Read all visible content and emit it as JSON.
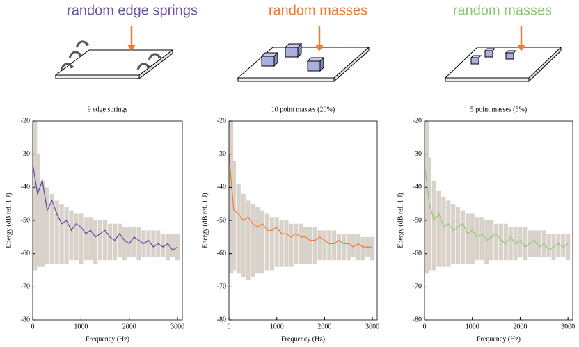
{
  "chart_data": [
    {
      "type": "line",
      "heading": "random edge springs",
      "heading_color": "#6a52a3",
      "title": "9 edge springs",
      "x_label": "Frequency (Hz)",
      "y_label": "Energy (dB ref. 1 J)",
      "x": [
        0,
        100,
        200,
        300,
        400,
        500,
        600,
        700,
        800,
        900,
        1000,
        1100,
        1200,
        1300,
        1400,
        1500,
        1600,
        1700,
        1800,
        1900,
        2000,
        2100,
        2200,
        2300,
        2400,
        2500,
        2600,
        2700,
        2800,
        2900,
        3000
      ],
      "series": [
        {
          "color": "#5b45a0",
          "values": [
            -33,
            -42,
            -38,
            -47,
            -44,
            -48,
            -51,
            -50,
            -53,
            -51,
            -52,
            -54,
            -53,
            -55,
            -54,
            -53,
            -55,
            -56,
            -54,
            -56,
            -57,
            -55,
            -56,
            -57,
            -56,
            -58,
            -57,
            -58,
            -57,
            -59,
            -58
          ]
        }
      ],
      "band": {
        "color": "#d9d2cb",
        "upper": [
          -20,
          -30,
          -38,
          -40,
          -42,
          -44,
          -45,
          -46,
          -47,
          -48,
          -48,
          -49,
          -49,
          -50,
          -50,
          -50,
          -51,
          -51,
          -51,
          -52,
          -52,
          -52,
          -52,
          -53,
          -53,
          -53,
          -53,
          -54,
          -54,
          -54,
          -54
        ],
        "lower": [
          -65,
          -64,
          -64,
          -63,
          -63,
          -63,
          -63,
          -63,
          -62,
          -62,
          -63,
          -62,
          -62,
          -63,
          -62,
          -62,
          -62,
          -62,
          -61,
          -62,
          -61,
          -61,
          -62,
          -61,
          -61,
          -61,
          -61,
          -61,
          -62,
          -61,
          -62
        ]
      },
      "xlim": [
        0,
        3100
      ],
      "ylim": [
        -80,
        -20
      ],
      "xticks": [
        0,
        1000,
        2000,
        3000
      ],
      "yticks": [
        -80,
        -70,
        -60,
        -50,
        -40,
        -30,
        -20
      ]
    },
    {
      "type": "line",
      "heading": "random masses",
      "heading_color": "#f07a30",
      "title": "10 point masses (20%)",
      "x_label": "Frequency (Hz)",
      "y_label": "Energy (dB ref. 1 J)",
      "x": [
        0,
        100,
        200,
        300,
        400,
        500,
        600,
        700,
        800,
        900,
        1000,
        1100,
        1200,
        1300,
        1400,
        1500,
        1600,
        1700,
        1800,
        1900,
        2000,
        2100,
        2200,
        2300,
        2400,
        2500,
        2600,
        2700,
        2800,
        2900,
        3000
      ],
      "series": [
        {
          "color": "#f07a30",
          "values": [
            -30,
            -47,
            -48,
            -50,
            -49,
            -51,
            -52,
            -51,
            -53,
            -53,
            -52,
            -54,
            -54,
            -55,
            -54,
            -55,
            -55,
            -56,
            -56,
            -55,
            -56,
            -57,
            -57,
            -56,
            -57,
            -57,
            -58,
            -57,
            -58,
            -58,
            -58
          ]
        }
      ],
      "band": {
        "color": "#d9d2cb",
        "upper": [
          -20,
          -32,
          -39,
          -42,
          -44,
          -45,
          -46,
          -47,
          -48,
          -49,
          -49,
          -50,
          -50,
          -51,
          -51,
          -51,
          -52,
          -52,
          -52,
          -53,
          -53,
          -53,
          -53,
          -54,
          -54,
          -54,
          -54,
          -54,
          -55,
          -55,
          -55
        ],
        "lower": [
          -66,
          -65,
          -66,
          -67,
          -68,
          -67,
          -66,
          -66,
          -65,
          -65,
          -64,
          -64,
          -64,
          -64,
          -63,
          -63,
          -63,
          -63,
          -63,
          -62,
          -62,
          -62,
          -62,
          -62,
          -62,
          -62,
          -61,
          -62,
          -62,
          -61,
          -62
        ]
      },
      "xlim": [
        0,
        3100
      ],
      "ylim": [
        -80,
        -20
      ],
      "xticks": [
        0,
        1000,
        2000,
        3000
      ],
      "yticks": [
        -80,
        -70,
        -60,
        -50,
        -40,
        -30,
        -20
      ]
    },
    {
      "type": "line",
      "heading": "random masses",
      "heading_color": "#8cc870",
      "title": "5 point masses (5%)",
      "x_label": "Frequency (Hz)",
      "y_label": "Energy (dB ref. 1 J)",
      "x": [
        0,
        100,
        200,
        300,
        400,
        500,
        600,
        700,
        800,
        900,
        1000,
        1100,
        1200,
        1300,
        1400,
        1500,
        1600,
        1700,
        1800,
        1900,
        2000,
        2100,
        2200,
        2300,
        2400,
        2500,
        2600,
        2700,
        2800,
        2900,
        3000
      ],
      "series": [
        {
          "color": "#8cc870",
          "values": [
            -33,
            -45,
            -50,
            -48,
            -52,
            -51,
            -53,
            -52,
            -51,
            -54,
            -53,
            -55,
            -54,
            -56,
            -55,
            -54,
            -56,
            -57,
            -55,
            -57,
            -56,
            -58,
            -57,
            -56,
            -58,
            -57,
            -59,
            -58,
            -57,
            -58,
            -57
          ]
        }
      ],
      "band": {
        "color": "#d9d2cb",
        "upper": [
          -20,
          -31,
          -38,
          -41,
          -43,
          -44,
          -45,
          -46,
          -47,
          -48,
          -48,
          -49,
          -49,
          -50,
          -50,
          -51,
          -51,
          -51,
          -52,
          -52,
          -52,
          -52,
          -53,
          -53,
          -53,
          -53,
          -54,
          -54,
          -54,
          -54,
          -54
        ],
        "lower": [
          -66,
          -65,
          -65,
          -64,
          -64,
          -64,
          -63,
          -63,
          -63,
          -63,
          -63,
          -62,
          -62,
          -63,
          -62,
          -62,
          -62,
          -62,
          -62,
          -62,
          -61,
          -62,
          -61,
          -61,
          -61,
          -61,
          -61,
          -62,
          -61,
          -61,
          -62
        ]
      },
      "xlim": [
        0,
        3100
      ],
      "ylim": [
        -80,
        -20
      ],
      "xticks": [
        0,
        1000,
        2000,
        3000
      ],
      "yticks": [
        -80,
        -70,
        -60,
        -50,
        -40,
        -30,
        -20
      ]
    }
  ]
}
